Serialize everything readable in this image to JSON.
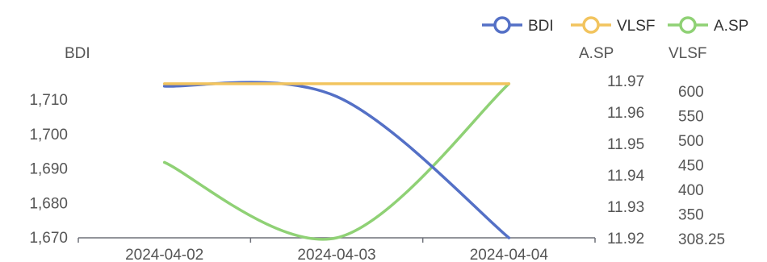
{
  "chart_data": {
    "type": "line",
    "categories": [
      "2024-04-02",
      "2024-04-03",
      "2024-04-04"
    ],
    "series": [
      {
        "name": "BDI",
        "axis": "BDI",
        "color": "#5470c6",
        "values": [
          1714,
          1711,
          1668
        ]
      },
      {
        "name": "VLSF",
        "axis": "VLSF",
        "color": "#f2c45e",
        "values": [
          615,
          615,
          615
        ]
      },
      {
        "name": "A.SP",
        "axis": "A.SP",
        "color": "#8fd175",
        "values": [
          11.944,
          11.92,
          11.969
        ]
      }
    ],
    "axes": {
      "BDI": {
        "label": "BDI",
        "ticks": [
          "1,710",
          "1,700",
          "1,690",
          "1,680",
          "1,670"
        ],
        "range": [
          1670,
          1710
        ],
        "position": "left"
      },
      "A.SP": {
        "label": "A.SP",
        "ticks": [
          "11.97",
          "11.96",
          "11.95",
          "11.94",
          "11.93",
          "11.92"
        ],
        "range": [
          11.92,
          11.97
        ],
        "position": "right"
      },
      "VLSF": {
        "label": "VLSF",
        "ticks": [
          "600",
          "550",
          "500",
          "450",
          "400",
          "350",
          "308.25"
        ],
        "position": "right-outer"
      }
    },
    "legend_position": "top-right",
    "grid": false
  }
}
